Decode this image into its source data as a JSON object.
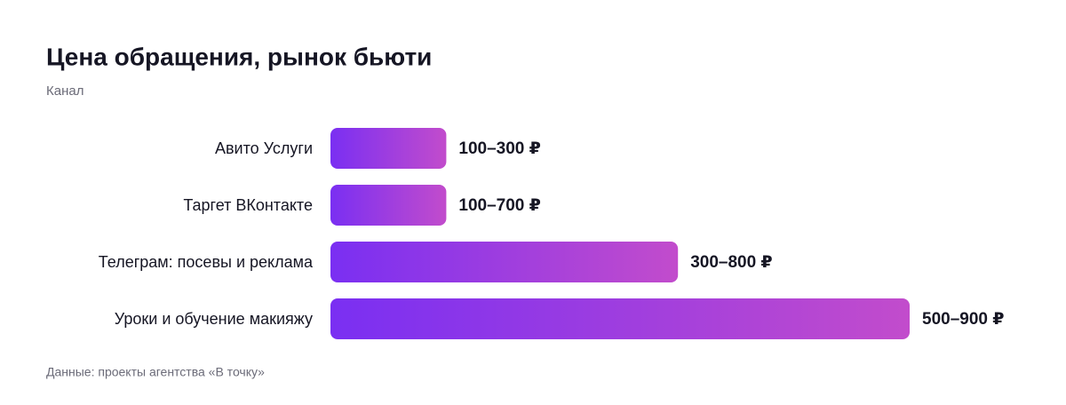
{
  "chart_data": {
    "type": "bar",
    "orientation": "horizontal",
    "title": "Цена обращения, рынок бьюти",
    "y_label": "Канал",
    "source": "Данные: проекты агентства «В точку»",
    "categories": [
      "Авито Услуги",
      "Таргет ВКонтакте",
      "Телеграм: посевы и реклама",
      "Уроки и обучение макияжу"
    ],
    "values": [
      100,
      100,
      300,
      500
    ],
    "value_labels": [
      "100–300 ₽",
      "100–700 ₽",
      "300–800 ₽",
      "500–900 ₽"
    ],
    "colors": [
      "#7a2ff2",
      "#c24ccc"
    ]
  }
}
